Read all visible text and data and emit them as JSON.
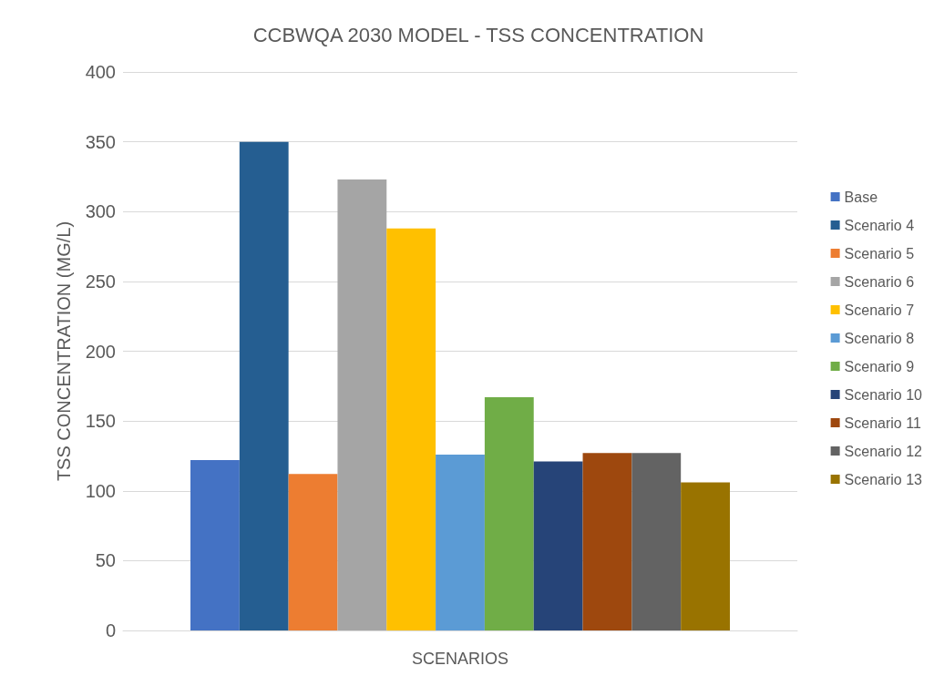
{
  "chart_data": {
    "type": "bar",
    "title": "CCBWQA 2030 MODEL - TSS CONCENTRATION",
    "xlabel": "SCENARIOS",
    "ylabel": "TSS CONCENTRATION (MG/L)",
    "categories": [
      null
    ],
    "series": [
      {
        "name": "Base",
        "color": "#4472c4",
        "values": [
          122
        ]
      },
      {
        "name": "Scenario 4",
        "color": "#255e91",
        "values": [
          350
        ]
      },
      {
        "name": "Scenario 5",
        "color": "#ed7d31",
        "values": [
          112
        ]
      },
      {
        "name": "Scenario 6",
        "color": "#a5a5a5",
        "values": [
          323
        ]
      },
      {
        "name": "Scenario 7",
        "color": "#ffc000",
        "values": [
          288
        ]
      },
      {
        "name": "Scenario 8",
        "color": "#5b9bd5",
        "values": [
          126
        ]
      },
      {
        "name": "Scenario 9",
        "color": "#70ad47",
        "values": [
          167
        ]
      },
      {
        "name": "Scenario 10",
        "color": "#264478",
        "values": [
          121
        ]
      },
      {
        "name": "Scenario 11",
        "color": "#9e480e",
        "values": [
          127
        ]
      },
      {
        "name": "Scenario 12",
        "color": "#636363",
        "values": [
          127
        ]
      },
      {
        "name": "Scenario 13",
        "color": "#997300",
        "values": [
          106
        ]
      }
    ],
    "ylim": [
      0,
      400
    ],
    "yticks": [
      0,
      50,
      100,
      150,
      200,
      250,
      300,
      350,
      400
    ],
    "grid": "y",
    "legend": "right"
  }
}
